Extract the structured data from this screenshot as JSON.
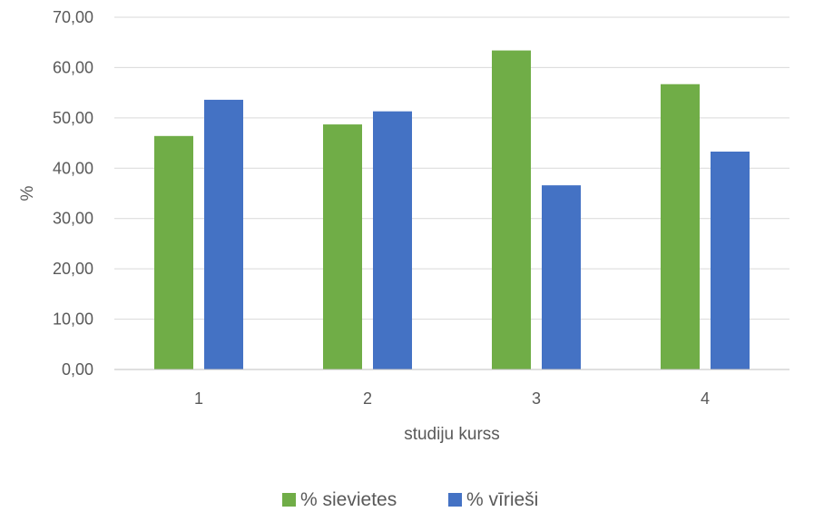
{
  "chart_data": {
    "type": "bar",
    "categories": [
      "1",
      "2",
      "3",
      "4"
    ],
    "series": [
      {
        "name": "% sievietes",
        "values": [
          46.4,
          48.7,
          63.4,
          56.7
        ],
        "color": "#70ad47"
      },
      {
        "name": "% vīrieši",
        "values": [
          53.6,
          51.3,
          36.6,
          43.3
        ],
        "color": "#4472c4"
      }
    ],
    "xlabel": "studiju kurss",
    "ylabel": "%",
    "ylim": [
      0,
      70
    ],
    "yticks": [
      "0,00",
      "10,00",
      "20,00",
      "30,00",
      "40,00",
      "50,00",
      "60,00",
      "70,00"
    ],
    "grid": true,
    "legend_position": "bottom"
  }
}
